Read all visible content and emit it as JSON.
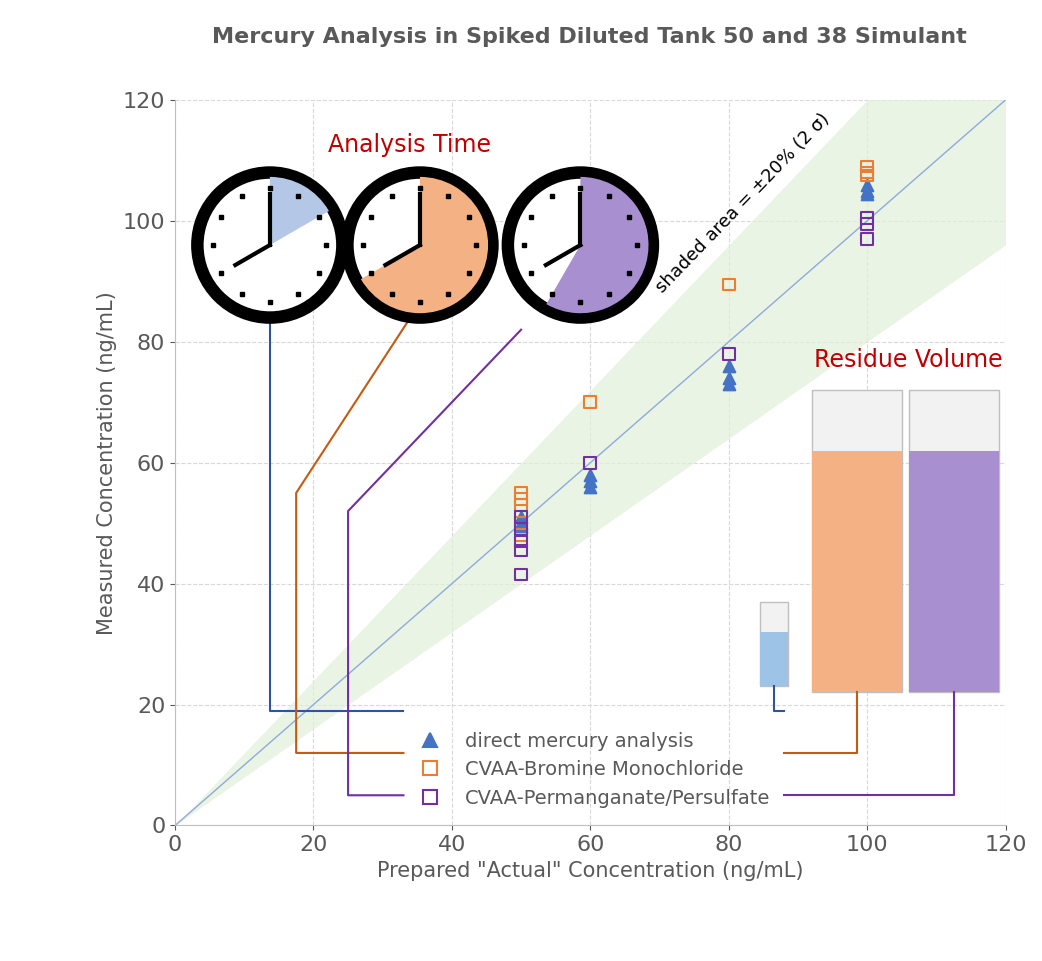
{
  "chart_data": {
    "type": "scatter",
    "title": "Mercury Analysis in Spiked Diluted Tank 50 and 38 Simulant",
    "x_label": "Prepared \"Actual\" Concentration (ng/mL)",
    "y_label": "Measured Concentration (ng/mL)",
    "xlim": [
      0,
      120
    ],
    "ylim": [
      0,
      120
    ],
    "xticks": [
      0,
      20,
      40,
      60,
      80,
      100,
      120
    ],
    "yticks": [
      0,
      20,
      40,
      60,
      80,
      100,
      120
    ],
    "grid": true,
    "legend": "lower center",
    "band_percent": 20,
    "annotations": [
      "Analysis Time",
      "Residue Volume",
      "shaded area = ±20% (2 σ)"
    ],
    "series": [
      {
        "name": "direct mercury analysis",
        "color": "#4472c4",
        "marker": "filled_triangle",
        "x": [
          50,
          50,
          50,
          60,
          60,
          60,
          80,
          80,
          80,
          100,
          100,
          100
        ],
        "values": [
          51,
          50,
          49.5,
          58,
          57,
          56,
          76,
          74,
          73,
          106,
          105,
          104.5
        ]
      },
      {
        "name": "CVAA-Bromine Monochloride",
        "color": "#ed7d31",
        "marker": "open_square",
        "x": [
          50,
          50,
          50,
          50,
          50,
          60,
          80,
          100,
          100,
          100
        ],
        "values": [
          55,
          54,
          53,
          50,
          48,
          70,
          89.5,
          109,
          108,
          107.5
        ]
      },
      {
        "name": "CVAA-Permanganate/Persulfate",
        "color": "#7030a0",
        "marker": "open_square",
        "x": [
          50,
          50,
          50,
          50,
          50,
          60,
          80,
          100,
          100,
          100
        ],
        "values": [
          51,
          49,
          47,
          45.5,
          41.5,
          60,
          78,
          100.5,
          99.5,
          97
        ]
      }
    ]
  }
}
